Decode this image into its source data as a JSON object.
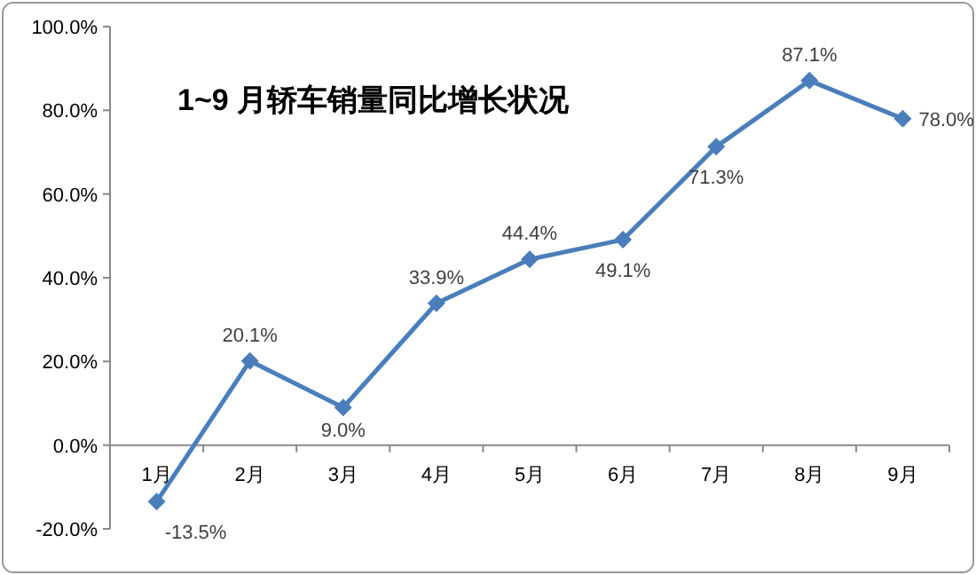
{
  "chart_data": {
    "type": "line",
    "title": "1~9 月轿车销量同比增长状况",
    "categories": [
      "1月",
      "2月",
      "3月",
      "4月",
      "5月",
      "6月",
      "7月",
      "8月",
      "9月"
    ],
    "series": [
      {
        "color": "#4a7ebb",
        "values": [
          -13.5,
          20.1,
          9.0,
          33.9,
          44.4,
          49.1,
          71.3,
          87.1,
          78.0
        ],
        "value_labels": [
          "-13.5%",
          "20.1%",
          "9.0%",
          "33.9%",
          "44.4%",
          "49.1%",
          "71.3%",
          "87.1%",
          "78.0%"
        ]
      }
    ],
    "ylim": [
      -20,
      100
    ],
    "yticks": [
      {
        "value": -20,
        "label": "-20.0%"
      },
      {
        "value": 0,
        "label": "0.0%"
      },
      {
        "value": 20,
        "label": "20.0%"
      },
      {
        "value": 40,
        "label": "40.0%"
      },
      {
        "value": 60,
        "label": "60.0%"
      },
      {
        "value": 80,
        "label": "80.0%"
      },
      {
        "value": 100,
        "label": "100.0%"
      }
    ],
    "marker": "diamond",
    "grid": false
  }
}
